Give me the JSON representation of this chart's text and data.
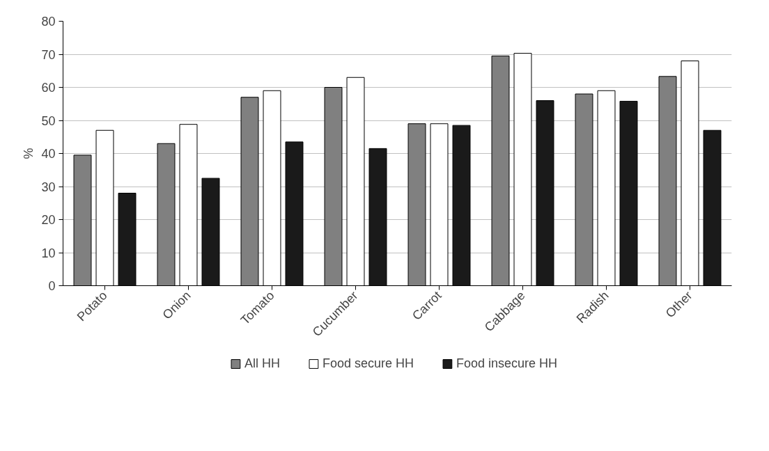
{
  "chart_data": {
    "type": "bar",
    "ylabel": "%",
    "categories": [
      "Potato",
      "Onion",
      "Tomato",
      "Cucumber",
      "Carrot",
      "Cabbage",
      "Radish",
      "Other"
    ],
    "series": [
      {
        "name": "All HH",
        "color": "#808080",
        "values": [
          39.5,
          43,
          57,
          60,
          49,
          69.5,
          58,
          63.3
        ]
      },
      {
        "name": "Food secure HH",
        "color": "#ffffff",
        "values": [
          47,
          48.8,
          59,
          63,
          49,
          70.3,
          59,
          68
        ]
      },
      {
        "name": "Food insecure HH",
        "color": "#1a1a1a",
        "values": [
          28,
          32.5,
          43.5,
          41.5,
          48.5,
          56,
          55.8,
          47
        ]
      }
    ],
    "ylim": [
      0,
      80
    ],
    "yticks": [
      0,
      10,
      20,
      30,
      40,
      50,
      60,
      70,
      80
    ],
    "grid": "y",
    "legend": "bottom"
  }
}
